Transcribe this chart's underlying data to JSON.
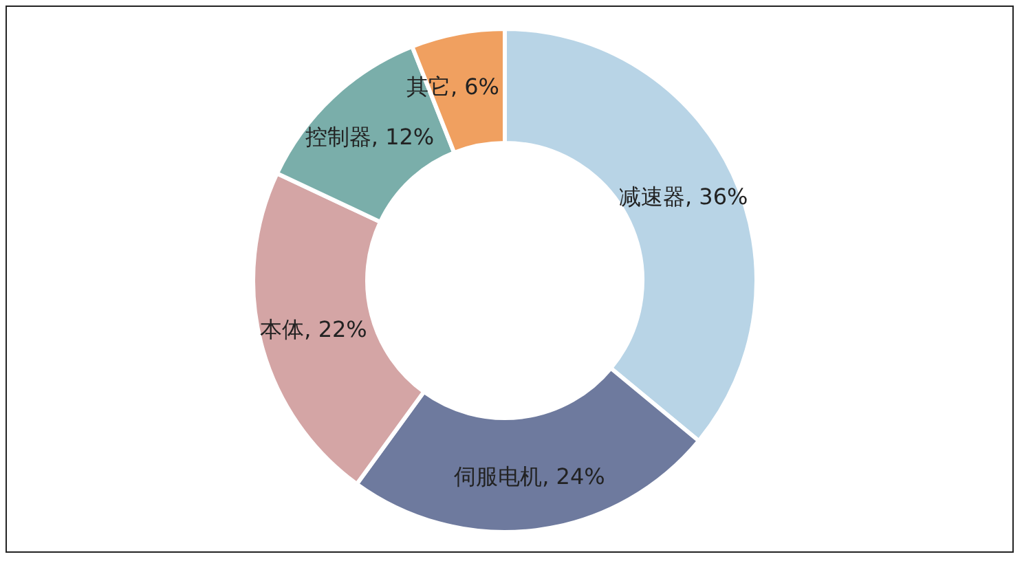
{
  "chart_data": {
    "type": "donut",
    "categories": [
      "减速器",
      "伺服电机",
      "本体",
      "控制器",
      "其它"
    ],
    "values": [
      36,
      24,
      22,
      12,
      6
    ],
    "colors": [
      "#b8d4e6",
      "#6e7a9e",
      "#d4a5a5",
      "#7aaeaa",
      "#f0a060"
    ],
    "value_labels": [
      ", 36%",
      ", 24%",
      ", 22%",
      ", 12%",
      ", 6%"
    ],
    "legend": false
  }
}
